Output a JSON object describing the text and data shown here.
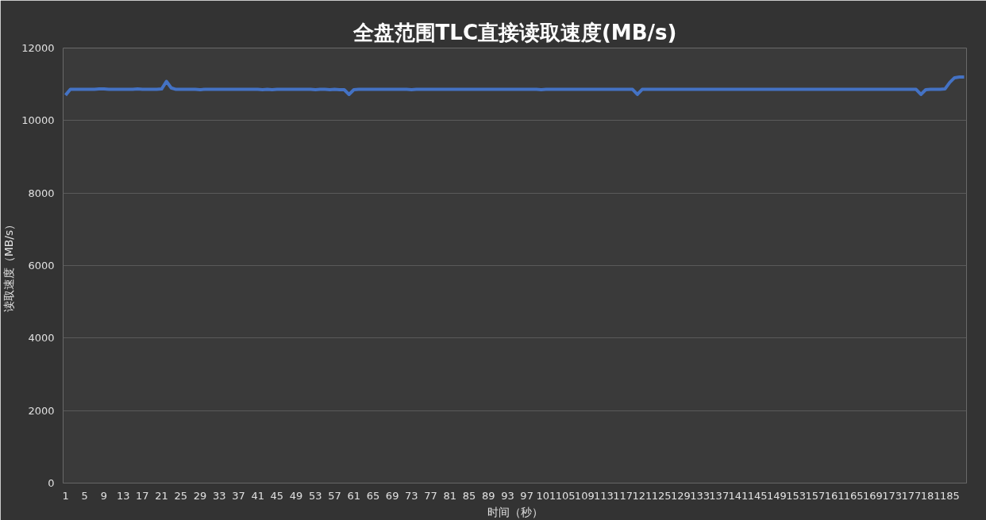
{
  "chart_data": {
    "type": "line",
    "title": "全盘范围TLC直接读取速度(MB/s)",
    "xlabel": "时间（秒）",
    "ylabel": "读取速度（MB/s）",
    "categories": [
      "1",
      null,
      null,
      null,
      "5",
      null,
      null,
      null,
      "9",
      null,
      null,
      null,
      "13",
      null,
      null,
      null,
      "17",
      null,
      null,
      null,
      "21",
      null,
      null,
      null,
      "25",
      null,
      null,
      null,
      "29",
      null,
      null,
      null,
      "33",
      null,
      null,
      null,
      "37",
      null,
      null,
      null,
      "41",
      null,
      null,
      null,
      "45",
      null,
      null,
      null,
      "49",
      null,
      null,
      null,
      "53",
      null,
      null,
      null,
      "57",
      null,
      null,
      null,
      "61",
      null,
      null,
      null,
      "65",
      null,
      null,
      null,
      "69",
      null,
      null,
      null,
      "73",
      null,
      null,
      null,
      "77",
      null,
      null,
      null,
      "81",
      null,
      null,
      null,
      "85",
      null,
      null,
      null,
      "89",
      null,
      null,
      null,
      "93",
      null,
      null,
      null,
      "97",
      null,
      null,
      null,
      "101",
      null,
      null,
      null,
      "105",
      null,
      null,
      null,
      "109",
      null,
      null,
      null,
      "113",
      null,
      null,
      null,
      "117",
      null,
      null,
      null,
      "121",
      null,
      null,
      null,
      "125",
      null,
      null,
      null,
      "129",
      null,
      null,
      null,
      "133",
      null,
      null,
      null,
      "137",
      null,
      null,
      null,
      "141",
      null,
      null,
      null,
      "145",
      null,
      null,
      null,
      "149",
      null,
      null,
      null,
      "153",
      null,
      null,
      null,
      "157",
      null,
      null,
      null,
      "161",
      null,
      null,
      null,
      "165",
      null,
      null,
      null,
      "169",
      null,
      null,
      null,
      "173",
      null,
      null,
      null,
      "177",
      null,
      null,
      null,
      "181",
      null,
      null,
      null,
      "185",
      null,
      null,
      null
    ],
    "series": [
      {
        "color": "#4472c4",
        "values": [
          10700,
          10860,
          10860,
          10860,
          10860,
          10860,
          10860,
          10870,
          10870,
          10860,
          10860,
          10860,
          10860,
          10860,
          10860,
          10870,
          10860,
          10860,
          10860,
          10860,
          10870,
          11080,
          10900,
          10860,
          10860,
          10860,
          10860,
          10860,
          10850,
          10860,
          10860,
          10860,
          10860,
          10860,
          10860,
          10860,
          10860,
          10860,
          10860,
          10860,
          10860,
          10850,
          10860,
          10850,
          10860,
          10860,
          10860,
          10860,
          10860,
          10860,
          10860,
          10860,
          10850,
          10860,
          10860,
          10850,
          10860,
          10850,
          10850,
          10720,
          10850,
          10860,
          10860,
          10860,
          10860,
          10860,
          10860,
          10860,
          10860,
          10860,
          10860,
          10860,
          10850,
          10860,
          10860,
          10860,
          10860,
          10860,
          10860,
          10860,
          10860,
          10860,
          10860,
          10860,
          10860,
          10860,
          10860,
          10860,
          10860,
          10860,
          10860,
          10860,
          10860,
          10860,
          10860,
          10860,
          10860,
          10860,
          10860,
          10850,
          10860,
          10860,
          10860,
          10860,
          10860,
          10860,
          10860,
          10860,
          10860,
          10860,
          10860,
          10860,
          10860,
          10860,
          10860,
          10860,
          10860,
          10860,
          10860,
          10720,
          10860,
          10860,
          10860,
          10860,
          10860,
          10860,
          10860,
          10860,
          10860,
          10860,
          10860,
          10860,
          10860,
          10860,
          10860,
          10860,
          10860,
          10860,
          10860,
          10860,
          10860,
          10860,
          10860,
          10860,
          10860,
          10860,
          10860,
          10860,
          10860,
          10860,
          10860,
          10860,
          10860,
          10860,
          10860,
          10860,
          10860,
          10860,
          10860,
          10860,
          10860,
          10860,
          10860,
          10860,
          10860,
          10860,
          10860,
          10860,
          10860,
          10860,
          10860,
          10860,
          10860,
          10860,
          10860,
          10860,
          10860,
          10860,
          10720,
          10850,
          10860,
          10860,
          10860,
          10870,
          11050,
          11180,
          11200,
          11200
        ]
      }
    ],
    "ylim": [
      0,
      12000
    ],
    "yticks": [
      0,
      2000,
      4000,
      6000,
      8000,
      10000,
      12000
    ],
    "grid": "y"
  }
}
